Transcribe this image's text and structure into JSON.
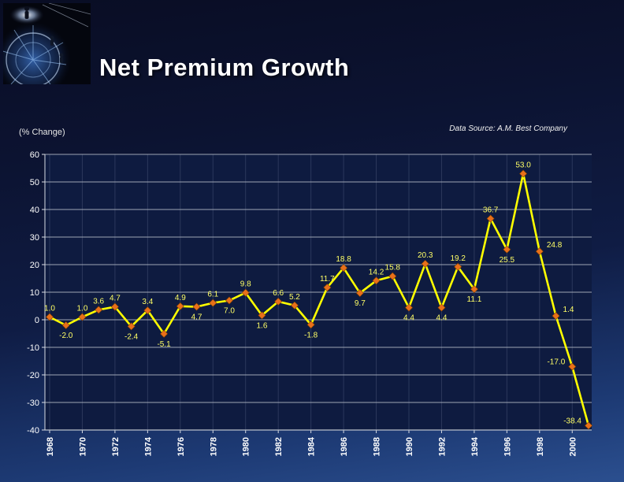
{
  "slide": {
    "title": "Net Premium Growth",
    "axis_note": "(% Change)",
    "source_note": "Data Source: A.M. Best Company"
  },
  "chart_data": {
    "type": "line",
    "title": "Net Premium Growth",
    "ylabel": "(% Change)",
    "source": "Data Source: A.M. Best Company",
    "x": [
      1968,
      1969,
      1970,
      1971,
      1972,
      1973,
      1974,
      1975,
      1976,
      1977,
      1978,
      1979,
      1980,
      1981,
      1982,
      1983,
      1984,
      1985,
      1986,
      1987,
      1988,
      1989,
      1990,
      1991,
      1992,
      1993,
      1994,
      1995,
      1996,
      1997,
      1998,
      1999,
      2000,
      2001
    ],
    "values": [
      1.0,
      -2.0,
      1.0,
      3.6,
      4.7,
      -2.4,
      3.4,
      -5.1,
      4.9,
      4.7,
      6.1,
      7.0,
      9.8,
      1.6,
      6.6,
      5.2,
      -1.8,
      11.7,
      18.8,
      9.7,
      14.2,
      15.8,
      4.4,
      20.3,
      4.4,
      19.2,
      11.1,
      36.7,
      25.5,
      53.0,
      24.8,
      1.4,
      -17.0,
      -38.4
    ],
    "label_sides": [
      "above",
      "below",
      "above",
      "above",
      "above",
      "below",
      "above",
      "below",
      "above",
      "below",
      "above",
      "below",
      "above",
      "below",
      "above",
      "above",
      "below",
      "above",
      "above",
      "below",
      "above",
      "above",
      "below",
      "above",
      "below",
      "above",
      "below",
      "above",
      "below",
      "above",
      "right",
      "right",
      "left",
      "left"
    ],
    "xticks": [
      1968,
      1970,
      1972,
      1974,
      1976,
      1978,
      1980,
      1982,
      1984,
      1986,
      1988,
      1990,
      1992,
      1994,
      1996,
      1998,
      2000
    ],
    "ylim": [
      -40,
      60
    ],
    "ytick_step": 10,
    "grid": true,
    "legend": "none",
    "colors": {
      "line": "#ffff00",
      "marker": "#e8701a",
      "marker_edge": "#7a3c00",
      "data_label": "#ffff66",
      "axis_text": "#ffffff",
      "grid_h": "#b6bcc8",
      "grid_v": "rgba(175,190,220,0.18)",
      "axis": "#d8dce4",
      "plot_bg": "#0e1b40"
    }
  }
}
